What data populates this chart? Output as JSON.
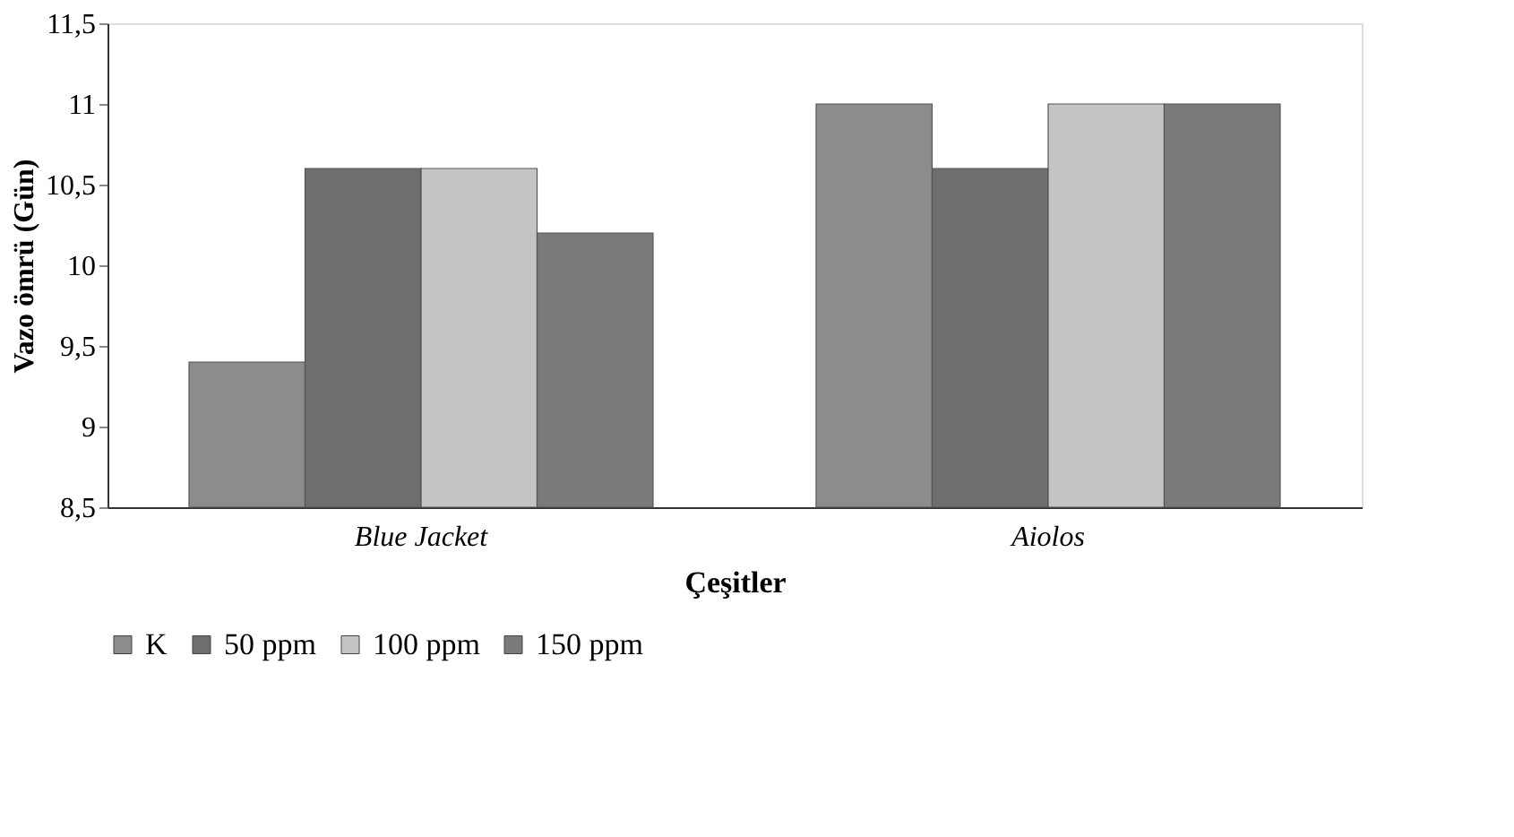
{
  "chart_data": {
    "type": "bar",
    "xlabel": "Çeşitler",
    "ylabel": "Vazo ömrü  (Gün)",
    "categories": [
      "Blue Jacket",
      "Aiolos"
    ],
    "series": [
      {
        "name": "K",
        "color": "#8c8c8c",
        "values": [
          9.4,
          11
        ]
      },
      {
        "name": "50 ppm",
        "color": "#6e6e6e",
        "values": [
          10.6,
          10.6
        ]
      },
      {
        "name": "100 ppm",
        "color": "#c4c4c4",
        "values": [
          10.6,
          11
        ]
      },
      {
        "name": "150 ppm",
        "color": "#7a7a7a",
        "values": [
          10.2,
          11
        ]
      }
    ],
    "ylim": [
      8.5,
      11.5
    ],
    "yticks": [
      {
        "value": 8.5,
        "label": "8,5"
      },
      9,
      {
        "value": 9.5,
        "label": "9,5"
      },
      10,
      {
        "value": 10.5,
        "label": "10,5"
      },
      11,
      {
        "value": 11.5,
        "label": "11,5"
      }
    ],
    "grid": false,
    "legend": "bottom"
  }
}
